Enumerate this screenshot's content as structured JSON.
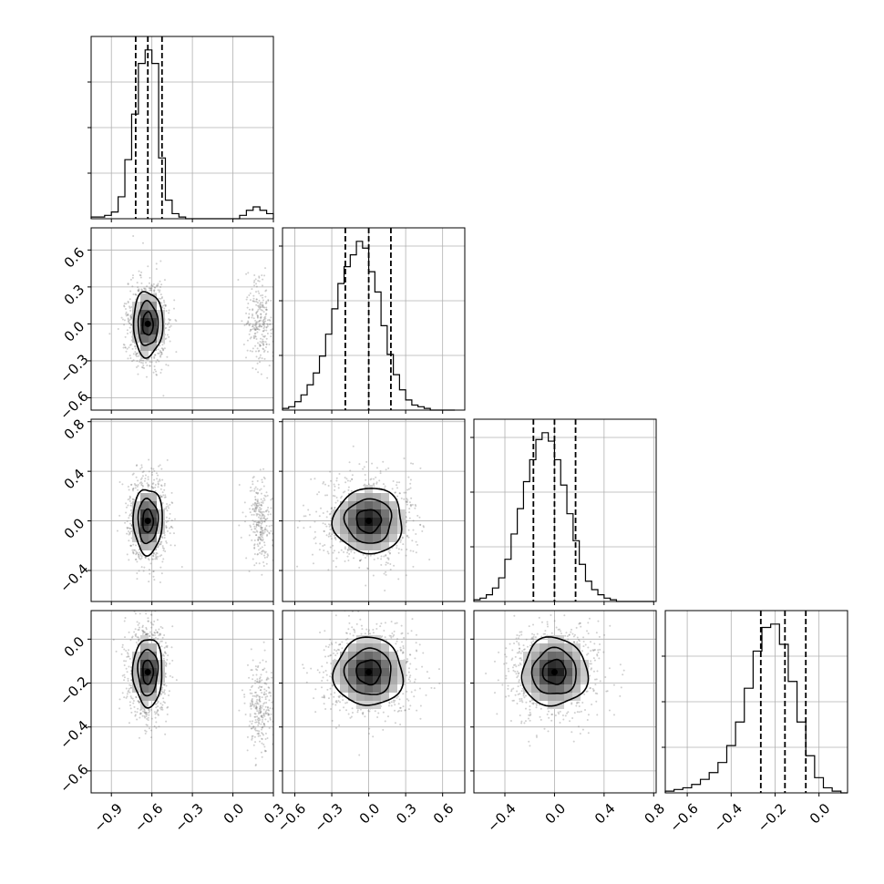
{
  "chart_data": {
    "type": "corner",
    "title": "",
    "grid": true,
    "n_params": 4,
    "params": [
      {
        "ticks": [
          -0.9,
          -0.6,
          -0.3,
          0.0,
          0.3
        ],
        "tick_labels": [
          "−0.9",
          "−0.6",
          "−0.3",
          "0.0",
          "0.3"
        ],
        "range": [
          -1.05,
          0.3
        ],
        "quantiles": [
          -0.72,
          -0.63,
          -0.525
        ]
      },
      {
        "ticks": [
          -0.6,
          -0.3,
          0.0,
          0.3,
          0.6
        ],
        "tick_labels": [
          "−0.6",
          "−0.3",
          "0.0",
          "0.3",
          "0.6"
        ],
        "range": [
          -0.7,
          0.78
        ],
        "quantiles": [
          -0.19,
          0.0,
          0.18
        ]
      },
      {
        "ticks": [
          -0.4,
          0.0,
          0.4,
          0.8
        ],
        "tick_labels": [
          "−0.4",
          "0.0",
          "0.4",
          "0.8"
        ],
        "range": [
          -0.65,
          0.82
        ],
        "quantiles": [
          -0.17,
          0.0,
          0.17
        ]
      },
      {
        "ticks": [
          -0.6,
          -0.4,
          -0.2,
          0.0
        ],
        "tick_labels": [
          "−0.6",
          "−0.4",
          "−0.2",
          "0.0"
        ],
        "range": [
          -0.7,
          0.13
        ],
        "quantiles": [
          -0.265,
          -0.155,
          -0.06
        ]
      }
    ],
    "diag_y_ticks": [
      [
        0.25,
        0.5,
        0.75
      ],
      [
        0.3,
        0.6,
        0.9
      ],
      [
        0.3,
        0.6,
        0.9
      ],
      [
        0.25,
        0.5,
        0.75
      ]
    ],
    "histograms": [
      {
        "bins": [
          -1.05,
          -1.0,
          -0.95,
          -0.9,
          -0.85,
          -0.8,
          -0.75,
          -0.7,
          -0.65,
          -0.6,
          -0.55,
          -0.5,
          -0.45,
          -0.4,
          -0.35,
          -0.3,
          -0.25,
          -0.2,
          -0.15,
          -0.1,
          -0.05,
          0.0,
          0.05,
          0.1,
          0.15,
          0.2,
          0.25,
          0.3
        ],
        "counts": [
          0.01,
          0.01,
          0.02,
          0.04,
          0.13,
          0.35,
          0.62,
          0.92,
          1.0,
          0.92,
          0.36,
          0.11,
          0.03,
          0.01,
          0.0,
          0.0,
          0.0,
          0.0,
          0.0,
          0.0,
          0.0,
          0.0,
          0.02,
          0.05,
          0.07,
          0.05,
          0.03
        ]
      },
      {
        "bins": [
          -0.7,
          -0.65,
          -0.6,
          -0.55,
          -0.5,
          -0.45,
          -0.4,
          -0.35,
          -0.3,
          -0.25,
          -0.2,
          -0.15,
          -0.1,
          -0.05,
          0.0,
          0.05,
          0.1,
          0.15,
          0.2,
          0.25,
          0.3,
          0.35,
          0.4,
          0.45,
          0.5,
          0.55,
          0.6,
          0.65,
          0.7
        ],
        "counts": [
          0.01,
          0.02,
          0.05,
          0.09,
          0.15,
          0.22,
          0.32,
          0.45,
          0.6,
          0.75,
          0.85,
          0.92,
          1.0,
          0.96,
          0.82,
          0.7,
          0.5,
          0.33,
          0.21,
          0.12,
          0.06,
          0.03,
          0.02,
          0.01,
          0.0,
          0.0,
          0.0,
          0.0
        ]
      },
      {
        "bins": [
          -0.65,
          -0.6,
          -0.55,
          -0.5,
          -0.45,
          -0.4,
          -0.35,
          -0.3,
          -0.25,
          -0.2,
          -0.15,
          -0.1,
          -0.05,
          0.0,
          0.05,
          0.1,
          0.15,
          0.2,
          0.25,
          0.3,
          0.35,
          0.4,
          0.45,
          0.5,
          0.55,
          0.6,
          0.65,
          0.7,
          0.75,
          0.8
        ],
        "counts": [
          0.01,
          0.02,
          0.04,
          0.08,
          0.14,
          0.25,
          0.4,
          0.55,
          0.71,
          0.84,
          0.96,
          1.0,
          0.95,
          0.84,
          0.69,
          0.52,
          0.36,
          0.22,
          0.12,
          0.07,
          0.04,
          0.02,
          0.01,
          0.0,
          0.0,
          0.0,
          0.0,
          0.0,
          0.0
        ]
      },
      {
        "bins": [
          -0.7,
          -0.66,
          -0.62,
          -0.58,
          -0.54,
          -0.5,
          -0.46,
          -0.42,
          -0.38,
          -0.34,
          -0.3,
          -0.26,
          -0.22,
          -0.18,
          -0.14,
          -0.1,
          -0.06,
          -0.02,
          0.02,
          0.06,
          0.1,
          0.13
        ],
        "counts": [
          0.01,
          0.02,
          0.03,
          0.05,
          0.08,
          0.12,
          0.18,
          0.28,
          0.42,
          0.62,
          0.84,
          0.98,
          1.0,
          0.88,
          0.66,
          0.42,
          0.22,
          0.09,
          0.03,
          0.01,
          0.0
        ]
      }
    ],
    "joint_modes": [
      {
        "i": 1,
        "j": 0,
        "center": [
          -0.63,
          0.0
        ],
        "spread": [
          0.07,
          0.17
        ],
        "secondary": {
          "center": [
            0.2,
            0.0
          ],
          "spread": [
            0.05,
            0.17
          ],
          "weight": 0.06
        }
      },
      {
        "i": 2,
        "j": 0,
        "center": [
          -0.63,
          0.0
        ],
        "spread": [
          0.07,
          0.17
        ],
        "secondary": {
          "center": [
            0.2,
            0.0
          ],
          "spread": [
            0.05,
            0.17
          ],
          "weight": 0.06
        }
      },
      {
        "i": 3,
        "j": 0,
        "center": [
          -0.63,
          -0.15
        ],
        "spread": [
          0.07,
          0.1
        ],
        "secondary": {
          "center": [
            0.2,
            -0.3
          ],
          "spread": [
            0.05,
            0.1
          ],
          "weight": 0.06
        }
      },
      {
        "i": 2,
        "j": 1,
        "center": [
          0.0,
          0.0
        ],
        "spread": [
          0.18,
          0.17
        ],
        "secondary": null
      },
      {
        "i": 3,
        "j": 1,
        "center": [
          0.0,
          -0.15
        ],
        "spread": [
          0.18,
          0.1
        ],
        "secondary": null
      },
      {
        "i": 3,
        "j": 2,
        "center": [
          0.0,
          -0.15
        ],
        "spread": [
          0.17,
          0.1
        ],
        "secondary": null
      }
    ]
  }
}
